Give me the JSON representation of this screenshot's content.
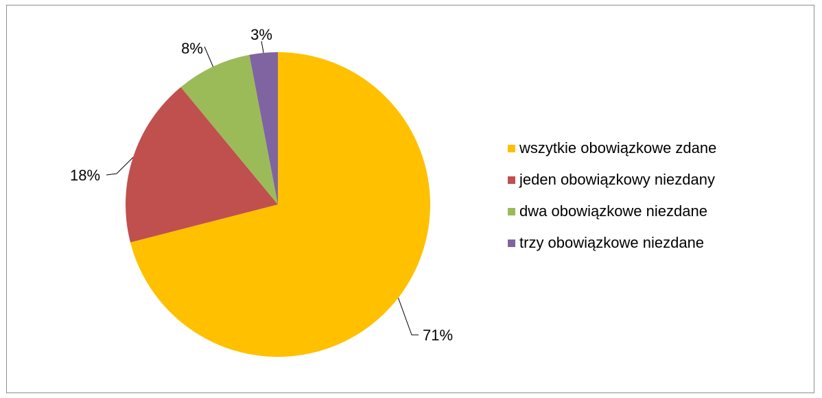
{
  "chart_data": {
    "type": "pie",
    "categories": [
      "wszytkie obowiązkowe zdane",
      "jeden obowiązkowy niezdany",
      "dwa obowiązkowe niezdane",
      "trzy obowiązkowe niezdane"
    ],
    "values": [
      71,
      18,
      8,
      3
    ],
    "data_labels": [
      "71%",
      "18%",
      "8%",
      "3%"
    ],
    "colors": [
      "#ffc000",
      "#c0504d",
      "#9bbb59",
      "#8064a2"
    ],
    "title": "",
    "legend_position": "right",
    "start_angle_deg": 0,
    "direction": "clockwise"
  }
}
